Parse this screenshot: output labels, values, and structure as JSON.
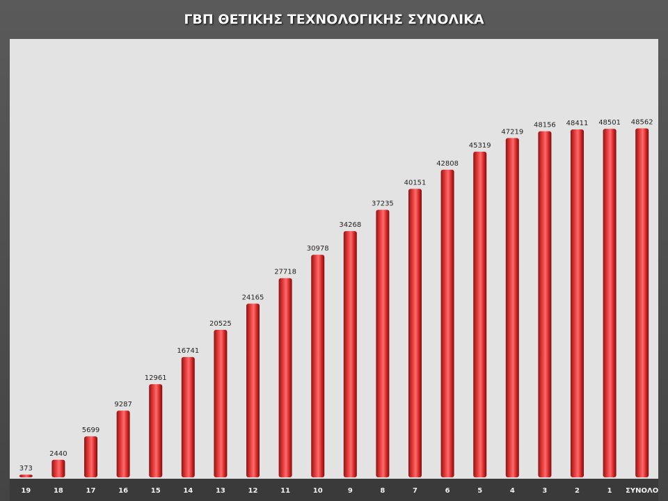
{
  "chart_data": {
    "type": "bar",
    "title": "ΓΒΠ ΘΕΤΙΚΗΣ ΤΕΧΝΟΛΟΓΙΚΗΣ ΣΥΝΟΛΙΚΑ",
    "categories": [
      "19",
      "18",
      "17",
      "16",
      "15",
      "14",
      "13",
      "12",
      "11",
      "10",
      "9",
      "8",
      "7",
      "6",
      "5",
      "4",
      "3",
      "2",
      "1",
      "ΣΥΝΟΛΟ"
    ],
    "values": [
      373,
      2440,
      5699,
      9287,
      12961,
      16741,
      20525,
      24165,
      27718,
      30978,
      34268,
      37235,
      40151,
      42808,
      45319,
      47219,
      48156,
      48411,
      48501,
      48562
    ],
    "ylim": [
      0,
      61000
    ],
    "grid": false,
    "legend": "none",
    "colors": {
      "bar": "#d42a2a",
      "plot_bg": "#e3e3e3",
      "frame": "#4a4a4a"
    }
  }
}
